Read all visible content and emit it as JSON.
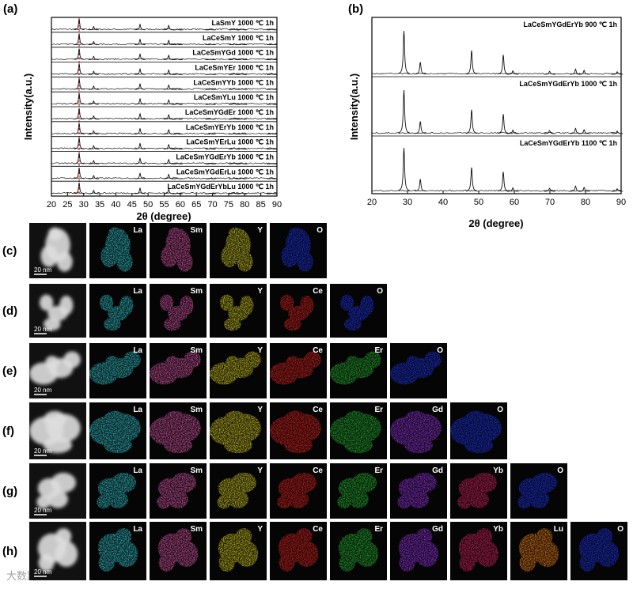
{
  "panel_a": {
    "label": "(a)",
    "y_label": "Intensity(a.u.)",
    "x_label": "2θ (degree)",
    "xlim": [
      20,
      90
    ],
    "xticks": [
      20,
      25,
      30,
      35,
      40,
      45,
      50,
      55,
      60,
      65,
      70,
      75,
      80,
      85,
      90
    ],
    "reference_line": 28.6,
    "samples": [
      "LaSmY 1000 ℃ 1h",
      "LaCeSmY 1000 ℃ 1h",
      "LaCeSmYGd 1000 ℃ 1h",
      "LaCeSmYEr 1000 ℃ 1h",
      "LaCeSmYYb 1000 ℃ 1h",
      "LaCeSmYLu 1000 ℃ 1h",
      "LaCeSmYGdEr 1000 ℃ 1h",
      "LaCeSmYErYb 1000 ℃ 1h",
      "LaCeSmYErLu 1000 ℃ 1h",
      "LaCeSmYGdErYb 1000 ℃ 1h",
      "LaCeSmYGdErLu 1000 ℃ 1h",
      "LaCeSmYGdErYbLu 1000 ℃ 1h"
    ],
    "peaks": [
      {
        "position": 28.6,
        "intensity": 100
      },
      {
        "position": 33.1,
        "intensity": 30
      },
      {
        "position": 47.5,
        "intensity": 50
      },
      {
        "position": 56.4,
        "intensity": 40
      },
      {
        "position": 59.1,
        "intensity": 8
      },
      {
        "position": 69.4,
        "intensity": 6
      },
      {
        "position": 76.7,
        "intensity": 12
      },
      {
        "position": 79.1,
        "intensity": 8
      },
      {
        "position": 88.4,
        "intensity": 6
      }
    ]
  },
  "panel_b": {
    "label": "(b)",
    "y_label": "Intensity(a.u.)",
    "x_label": "2θ (degree)",
    "xlim": [
      20,
      90
    ],
    "xticks": [
      20,
      30,
      40,
      50,
      60,
      70,
      80,
      90
    ],
    "samples": [
      "LaCeSmYGdErYb  900 ℃ 1h",
      "LaCeSmYGdErYb  1000 ℃ 1h",
      "LaCeSmYGdErYb  1100 ℃ 1h"
    ],
    "peaks": [
      {
        "position": 29.0,
        "intensity": 100
      },
      {
        "position": 33.6,
        "intensity": 28
      },
      {
        "position": 48.0,
        "intensity": 55
      },
      {
        "position": 56.9,
        "intensity": 45
      },
      {
        "position": 59.6,
        "intensity": 8
      },
      {
        "position": 69.9,
        "intensity": 7
      },
      {
        "position": 77.2,
        "intensity": 12
      },
      {
        "position": 79.6,
        "intensity": 9
      },
      {
        "position": 88.9,
        "intensity": 6
      }
    ]
  },
  "maps": [
    {
      "label": "(c)",
      "scale": "20 nm",
      "elements": [
        {
          "name": "La",
          "color": "#2fb8c0"
        },
        {
          "name": "Sm",
          "color": "#c9509a"
        },
        {
          "name": "Y",
          "color": "#c8c020"
        },
        {
          "name": "O",
          "color": "#1b2fd8"
        }
      ]
    },
    {
      "label": "(d)",
      "scale": "20 nm",
      "elements": [
        {
          "name": "La",
          "color": "#2fb8c0"
        },
        {
          "name": "Sm",
          "color": "#c9509a"
        },
        {
          "name": "Y",
          "color": "#c8c020"
        },
        {
          "name": "Ce",
          "color": "#d0201e"
        },
        {
          "name": "O",
          "color": "#1b2fd8"
        }
      ]
    },
    {
      "label": "(e)",
      "scale": "20 nm",
      "elements": [
        {
          "name": "La",
          "color": "#2fb8c0"
        },
        {
          "name": "Sm",
          "color": "#c9509a"
        },
        {
          "name": "Y",
          "color": "#c8c020"
        },
        {
          "name": "Ce",
          "color": "#d0201e"
        },
        {
          "name": "Er",
          "color": "#24a52e"
        },
        {
          "name": "O",
          "color": "#1b2fd8"
        }
      ]
    },
    {
      "label": "(f)",
      "scale": "20 nm",
      "elements": [
        {
          "name": "La",
          "color": "#2fb8c0"
        },
        {
          "name": "Sm",
          "color": "#c9509a"
        },
        {
          "name": "Y",
          "color": "#c8c020"
        },
        {
          "name": "Ce",
          "color": "#d0201e"
        },
        {
          "name": "Er",
          "color": "#24a52e"
        },
        {
          "name": "Gd",
          "color": "#8a2fd0"
        },
        {
          "name": "O",
          "color": "#1b2fd8"
        }
      ]
    },
    {
      "label": "(g)",
      "scale": "20 nm",
      "elements": [
        {
          "name": "La",
          "color": "#2fb8c0"
        },
        {
          "name": "Sm",
          "color": "#c9509a"
        },
        {
          "name": "Y",
          "color": "#c8c020"
        },
        {
          "name": "Ce",
          "color": "#d0201e"
        },
        {
          "name": "Er",
          "color": "#24a52e"
        },
        {
          "name": "Gd",
          "color": "#8a2fd0"
        },
        {
          "name": "Yb",
          "color": "#c8205a"
        },
        {
          "name": "O",
          "color": "#1b2fd8"
        }
      ]
    },
    {
      "label": "(h)",
      "scale": "20 nm",
      "elements": [
        {
          "name": "La",
          "color": "#2fb8c0"
        },
        {
          "name": "Sm",
          "color": "#c9509a"
        },
        {
          "name": "Y",
          "color": "#c8c020"
        },
        {
          "name": "Ce",
          "color": "#d0201e"
        },
        {
          "name": "Er",
          "color": "#24a52e"
        },
        {
          "name": "Gd",
          "color": "#8a2fd0"
        },
        {
          "name": "Yb",
          "color": "#c8205a"
        },
        {
          "name": "Lu",
          "color": "#e07a18"
        },
        {
          "name": "O",
          "color": "#1b2fd8"
        }
      ]
    }
  ],
  "watermark": "大数跨境"
}
